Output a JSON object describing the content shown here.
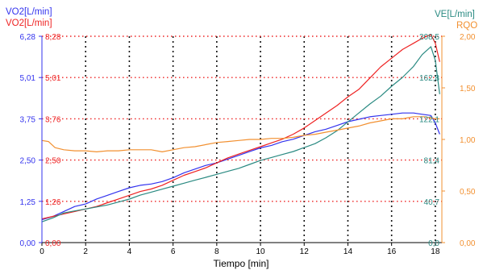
{
  "chart_data": {
    "type": "line",
    "xlabel": "Tiempo [min]",
    "xlim": [
      0,
      18.3
    ],
    "x_ticks": [
      0,
      2,
      4,
      6,
      8,
      10,
      12,
      14,
      16,
      18
    ],
    "grid": true,
    "axes": {
      "vo2_blue": {
        "label": "VO2[L/min]",
        "color": "#3333ee",
        "ylim": [
          0,
          8.28
        ],
        "ticks": [
          "0,00",
          "1,25",
          "2,50",
          "3,75",
          "5,01",
          "6,28"
        ]
      },
      "vo2_red": {
        "label": "VO2[L/min]",
        "color": "#ee2222",
        "ylim": [
          0,
          8.28
        ],
        "ticks": [
          "0,00",
          "1,26",
          "2,50",
          "3,76",
          "5,01",
          "8,28"
        ]
      },
      "ve": {
        "label": "VE[L/min]",
        "color": "#2a8a82",
        "ylim": [
          0,
          208.5
        ],
        "ticks": [
          "0,0",
          "40,7",
          "81,4",
          "122,1",
          "162,8",
          "208,5"
        ]
      },
      "rqo": {
        "label": "RQO",
        "color": "#f29030",
        "ylim": [
          0,
          2.0
        ],
        "ticks": [
          "0,00",
          "0,50",
          "1,00",
          "1,50",
          "2,00"
        ]
      }
    },
    "series": [
      {
        "axis": "vo2_blue",
        "color": "#3333ee",
        "x": [
          0,
          0.5,
          1,
          1.5,
          2,
          2.5,
          3,
          3.5,
          4,
          4.5,
          5,
          5.5,
          6,
          6.5,
          7,
          7.5,
          8,
          8.5,
          9,
          9.5,
          10,
          10.5,
          11,
          11.5,
          12,
          12.5,
          13,
          13.5,
          14,
          14.5,
          15,
          15.5,
          16,
          16.5,
          17,
          17.4,
          17.8,
          18.0,
          18.2
        ],
        "y": [
          0.92,
          1.05,
          1.25,
          1.45,
          1.55,
          1.75,
          1.9,
          2.05,
          2.2,
          2.3,
          2.35,
          2.45,
          2.6,
          2.8,
          2.95,
          3.1,
          3.2,
          3.35,
          3.5,
          3.65,
          3.8,
          3.9,
          4.05,
          4.15,
          4.3,
          4.45,
          4.55,
          4.7,
          4.85,
          4.95,
          5.05,
          5.1,
          5.15,
          5.2,
          5.2,
          5.15,
          5.1,
          4.8,
          4.35
        ]
      },
      {
        "axis": "vo2_red",
        "color": "#ee2222",
        "x": [
          0,
          0.5,
          1,
          1.5,
          2,
          2.5,
          3,
          3.5,
          4,
          4.5,
          5,
          5.5,
          6,
          6.5,
          7,
          7.5,
          8,
          8.5,
          9,
          9.5,
          10,
          10.5,
          11,
          11.5,
          12,
          12.5,
          13,
          13.5,
          14,
          14.5,
          15,
          15.5,
          16,
          16.5,
          17,
          17.4,
          17.8,
          18.0,
          18.2
        ],
        "y": [
          0.95,
          1.05,
          1.15,
          1.25,
          1.35,
          1.45,
          1.6,
          1.75,
          1.9,
          2.05,
          2.15,
          2.3,
          2.5,
          2.7,
          2.85,
          3.0,
          3.2,
          3.4,
          3.55,
          3.7,
          3.85,
          4.0,
          4.15,
          4.35,
          4.6,
          4.9,
          5.2,
          5.5,
          5.85,
          6.15,
          6.6,
          7.05,
          7.4,
          7.75,
          8.0,
          8.2,
          8.35,
          8.0,
          7.25
        ]
      },
      {
        "axis": "ve",
        "color": "#2a8a82",
        "x": [
          0,
          0.5,
          1,
          1.5,
          2,
          2.5,
          3,
          3.5,
          4,
          4.5,
          5,
          5.5,
          6,
          6.5,
          7,
          7.5,
          8,
          8.5,
          9,
          9.5,
          10,
          10.5,
          11,
          11.5,
          12,
          12.5,
          13,
          13.5,
          14,
          14.5,
          15,
          15.5,
          16,
          16.5,
          17,
          17.4,
          17.8,
          18.0,
          18.2
        ],
        "y": [
          21,
          25,
          30,
          32,
          34,
          36,
          38,
          41,
          44,
          48,
          51,
          54,
          57,
          60,
          63,
          66,
          69,
          72,
          75,
          79,
          83,
          86,
          89,
          92,
          96,
          100,
          106,
          113,
          122,
          131,
          140,
          148,
          158,
          167,
          178,
          190,
          198,
          184,
          150
        ]
      },
      {
        "axis": "rqo",
        "color": "#f29030",
        "x": [
          0,
          0.3,
          0.6,
          1,
          1.5,
          2,
          2.5,
          3,
          3.5,
          4,
          4.5,
          5,
          5.5,
          6,
          6.5,
          7,
          7.5,
          8,
          8.5,
          9,
          9.5,
          10,
          10.5,
          11,
          11.5,
          12,
          12.5,
          13,
          13.5,
          14,
          14.5,
          15,
          15.5,
          16,
          16.5,
          17,
          17.5,
          18.0,
          18.2
        ],
        "y": [
          0.99,
          0.98,
          0.92,
          0.9,
          0.89,
          0.89,
          0.88,
          0.89,
          0.89,
          0.9,
          0.9,
          0.9,
          0.88,
          0.9,
          0.92,
          0.93,
          0.95,
          0.97,
          0.98,
          0.99,
          1.0,
          1.0,
          1.01,
          1.01,
          1.02,
          1.04,
          1.05,
          1.07,
          1.09,
          1.11,
          1.13,
          1.16,
          1.18,
          1.2,
          1.2,
          1.22,
          1.22,
          1.2,
          1.2
        ]
      }
    ]
  }
}
